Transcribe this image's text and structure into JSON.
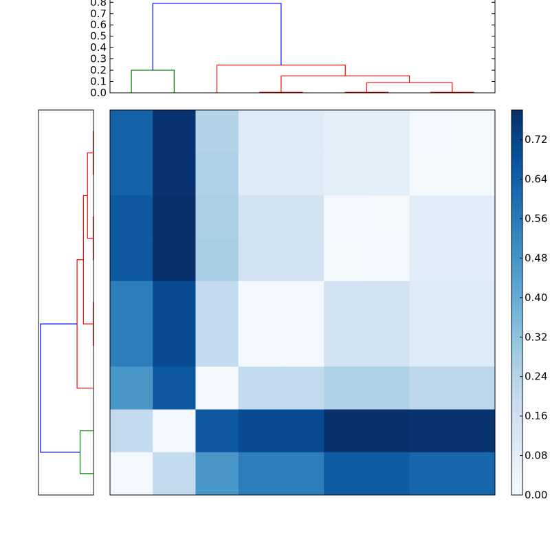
{
  "chart_data": {
    "type": "heatmap",
    "title": "",
    "cmap": "Blues",
    "matrix": [
      [
        0.63,
        0.77,
        0.24,
        0.1,
        0.1,
        0.08,
        0.08,
        0.02,
        0.01
      ],
      [
        0.63,
        0.77,
        0.25,
        0.1,
        0.1,
        0.08,
        0.08,
        0.01,
        0.01
      ],
      [
        0.66,
        0.79,
        0.26,
        0.15,
        0.15,
        0.02,
        0.01,
        0.09,
        0.09
      ],
      [
        0.66,
        0.79,
        0.27,
        0.15,
        0.15,
        0.01,
        0.02,
        0.09,
        0.09
      ],
      [
        0.55,
        0.7,
        0.2,
        0.02,
        0.02,
        0.15,
        0.15,
        0.1,
        0.1
      ],
      [
        0.55,
        0.7,
        0.2,
        0.02,
        0.02,
        0.15,
        0.15,
        0.1,
        0.1
      ],
      [
        0.47,
        0.66,
        0.02,
        0.2,
        0.2,
        0.25,
        0.25,
        0.22,
        0.22
      ],
      [
        0.2,
        0.02,
        0.66,
        0.7,
        0.7,
        0.79,
        0.79,
        0.77,
        0.77
      ],
      [
        0.02,
        0.2,
        0.47,
        0.55,
        0.55,
        0.65,
        0.65,
        0.62,
        0.62
      ]
    ],
    "heatmap_x_ticks": [],
    "heatmap_y_ticks": [],
    "colorbar": {
      "range": [
        0.0,
        0.78
      ],
      "ticks": [
        "0.00",
        "0.08",
        "0.16",
        "0.24",
        "0.32",
        "0.40",
        "0.48",
        "0.56",
        "0.64",
        "0.72"
      ]
    },
    "top_dendrogram": {
      "ylim": [
        0,
        0.82
      ],
      "y_ticks": [
        "0.0",
        "0.1",
        "0.2",
        "0.3",
        "0.4",
        "0.5",
        "0.6",
        "0.7",
        "0.8"
      ],
      "links": [
        {
          "color": "#008000",
          "x": [
            0.5,
            0.5,
            1.5,
            1.5
          ],
          "y": [
            0.0,
            0.2,
            0.2,
            0.0
          ]
        },
        {
          "color": "#ff0000",
          "x": [
            3.5,
            3.5,
            4.5,
            4.5
          ],
          "y": [
            0.0,
            0.005,
            0.005,
            0.0
          ]
        },
        {
          "color": "#ff0000",
          "x": [
            5.5,
            5.5,
            6.5,
            6.5
          ],
          "y": [
            0.0,
            0.005,
            0.005,
            0.0
          ]
        },
        {
          "color": "#ff0000",
          "x": [
            7.5,
            7.5,
            8.5,
            8.5
          ],
          "y": [
            0.0,
            0.005,
            0.005,
            0.0
          ]
        },
        {
          "color": "#ff0000",
          "x": [
            6.0,
            6.0,
            8.0,
            8.0
          ],
          "y": [
            0.005,
            0.09,
            0.09,
            0.005
          ]
        },
        {
          "color": "#ff0000",
          "x": [
            4.0,
            4.0,
            7.0,
            7.0
          ],
          "y": [
            0.005,
            0.15,
            0.15,
            0.09
          ]
        },
        {
          "color": "#ff0000",
          "x": [
            2.5,
            2.5,
            5.5,
            5.5
          ],
          "y": [
            0.0,
            0.245,
            0.245,
            0.15
          ]
        },
        {
          "color": "#0000ff",
          "x": [
            1.0,
            1.0,
            4.0,
            4.0
          ],
          "y": [
            0.2,
            0.79,
            0.79,
            0.245
          ]
        }
      ]
    },
    "left_dendrogram": {
      "xlim_reversed": [
        0.82,
        0
      ],
      "links": [
        {
          "color": "#008000",
          "y": [
            7.5,
            7.5,
            8.5,
            8.5
          ],
          "x": [
            0.0,
            0.2,
            0.2,
            0.0
          ]
        },
        {
          "color": "#ff0000",
          "y": [
            0.5,
            0.5,
            1.5,
            1.5
          ],
          "x": [
            0.0,
            0.005,
            0.005,
            0.0
          ]
        },
        {
          "color": "#ff0000",
          "y": [
            2.5,
            2.5,
            3.5,
            3.5
          ],
          "x": [
            0.0,
            0.005,
            0.005,
            0.0
          ]
        },
        {
          "color": "#ff0000",
          "y": [
            4.5,
            4.5,
            5.5,
            5.5
          ],
          "x": [
            0.0,
            0.005,
            0.005,
            0.0
          ]
        },
        {
          "color": "#ff0000",
          "y": [
            1.0,
            1.0,
            3.0,
            3.0
          ],
          "x": [
            0.005,
            0.09,
            0.09,
            0.005
          ]
        },
        {
          "color": "#ff0000",
          "y": [
            2.0,
            2.0,
            5.0,
            5.0
          ],
          "x": [
            0.09,
            0.15,
            0.15,
            0.005
          ]
        },
        {
          "color": "#ff0000",
          "y": [
            3.5,
            3.5,
            6.5,
            6.5
          ],
          "x": [
            0.15,
            0.245,
            0.245,
            0.0
          ]
        },
        {
          "color": "#0000ff",
          "y": [
            5.0,
            5.0,
            8.0,
            8.0
          ],
          "x": [
            0.245,
            0.79,
            0.79,
            0.2
          ]
        }
      ]
    }
  }
}
